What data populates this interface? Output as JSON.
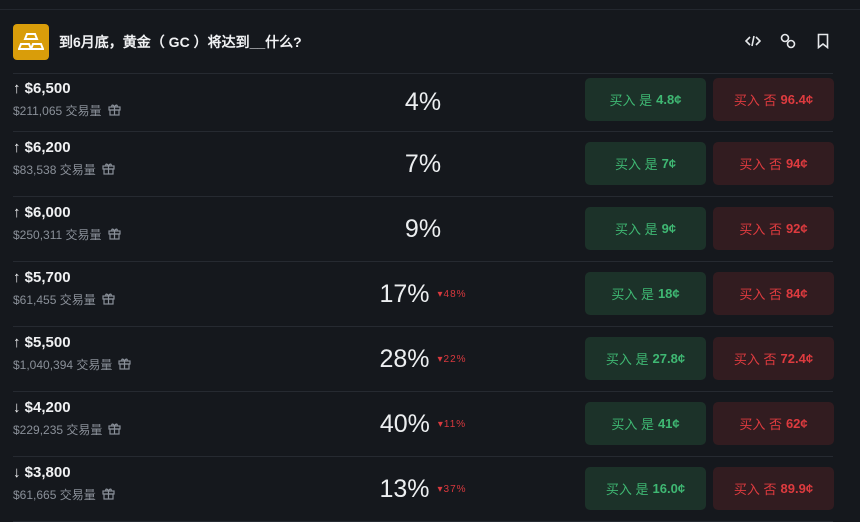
{
  "header": {
    "title": "到6月底，黄金（ GC ）将达到__什么?",
    "icons": [
      "gold-bars-icon",
      "embed-code-icon",
      "link-icon",
      "bookmark-icon"
    ]
  },
  "colors": {
    "logo": "#d99d0a",
    "yes": "#3fb873",
    "no": "#de3b3f"
  },
  "rows": [
    {
      "arrow": "↑",
      "price": "$6,500",
      "volume": "$211,065 交易量",
      "pct": "4%",
      "change": "",
      "yes_label": "买入 是",
      "yes_price": "4.8¢",
      "no_label": "买入 否",
      "no_price": "96.4¢"
    },
    {
      "arrow": "↑",
      "price": "$6,200",
      "volume": "$83,538 交易量",
      "pct": "7%",
      "change": "",
      "yes_label": "买入 是",
      "yes_price": "7¢",
      "no_label": "买入 否",
      "no_price": "94¢"
    },
    {
      "arrow": "↑",
      "price": "$6,000",
      "volume": "$250,311 交易量",
      "pct": "9%",
      "change": "",
      "yes_label": "买入 是",
      "yes_price": "9¢",
      "no_label": "买入 否",
      "no_price": "92¢"
    },
    {
      "arrow": "↑",
      "price": "$5,700",
      "volume": "$61,455 交易量",
      "pct": "17%",
      "change": "48%",
      "yes_label": "买入 是",
      "yes_price": "18¢",
      "no_label": "买入 否",
      "no_price": "84¢"
    },
    {
      "arrow": "↑",
      "price": "$5,500",
      "volume": "$1,040,394 交易量",
      "pct": "28%",
      "change": "22%",
      "yes_label": "买入 是",
      "yes_price": "27.8¢",
      "no_label": "买入 否",
      "no_price": "72.4¢"
    },
    {
      "arrow": "↓",
      "price": "$4,200",
      "volume": "$229,235 交易量",
      "pct": "40%",
      "change": "11%",
      "yes_label": "买入 是",
      "yes_price": "41¢",
      "no_label": "买入 否",
      "no_price": "62¢"
    },
    {
      "arrow": "↓",
      "price": "$3,800",
      "volume": "$61,665 交易量",
      "pct": "13%",
      "change": "37%",
      "yes_label": "买入 是",
      "yes_price": "16.0¢",
      "no_label": "买入 否",
      "no_price": "89.9¢"
    }
  ]
}
